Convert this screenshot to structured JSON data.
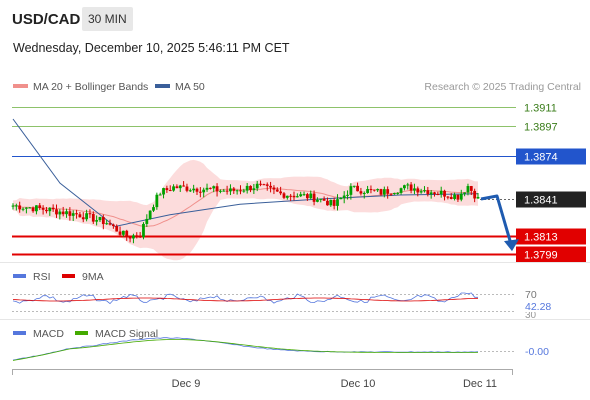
{
  "header": {
    "symbol": "USD/CAD",
    "interval": "30 MIN",
    "datetime": "Wednesday, December 10, 2025 5:46:11 PM CET"
  },
  "legend": {
    "ma20_label": "MA 20 + Bollinger Bands",
    "ma50_label": "MA 50",
    "copyright": "Research © 2025 Trading Central"
  },
  "colors": {
    "resistance_green": "#8dc26a",
    "pivot_blue": "#2255cc",
    "support_red": "#e10000",
    "candle_green": "#00a000",
    "candle_red": "#d40000",
    "bollinger_fill": "#fbd6d6",
    "ma20": "#f0908c",
    "ma50": "#3a5f9a",
    "arrow": "#1f5bb0",
    "rsi": "#5577dd",
    "rsi_ma": "#dd0000",
    "macd": "#5577dd",
    "macd_signal": "#44aa00"
  },
  "chart_data": {
    "type": "candlestick",
    "ylim": [
      1.3796,
      1.3918
    ],
    "levels": [
      {
        "value": 1.3911,
        "label": "1.3911",
        "kind": "resistance"
      },
      {
        "value": 1.3897,
        "label": "1.3897",
        "kind": "resistance"
      },
      {
        "value": 1.3874,
        "label": "1.3874",
        "kind": "pivot"
      },
      {
        "value": 1.3841,
        "label": "1.3841",
        "kind": "last"
      },
      {
        "value": 1.3813,
        "label": "1.3813",
        "kind": "support"
      },
      {
        "value": 1.3799,
        "label": "1.3799",
        "kind": "support"
      }
    ],
    "x_ticks": [
      "Dec 9",
      "Dec 10",
      "Dec 11"
    ],
    "forecast_arrow": {
      "from": 1.3841,
      "to": 1.3802
    },
    "rsi": {
      "label": "RSI",
      "ma_label": "9MA",
      "level_label": "70",
      "current_label": "42.28",
      "low_level_label": "30"
    },
    "macd": {
      "label": "MACD",
      "signal_label": "MACD Signal",
      "current_label": "-0.00"
    }
  }
}
